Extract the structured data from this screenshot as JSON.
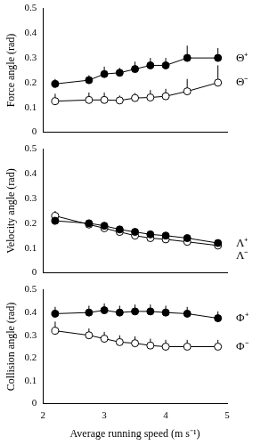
{
  "chart_data": [
    {
      "type": "line",
      "y_label": "Force angle (rad)",
      "x": [
        2.2,
        2.75,
        3.0,
        3.25,
        3.5,
        3.75,
        4.0,
        4.35,
        4.85
      ],
      "series": [
        {
          "name": "Θ⁺",
          "color": "#000000",
          "marker": "filled_circle",
          "line_style": "solid",
          "values": [
            0.195,
            0.21,
            0.235,
            0.24,
            0.255,
            0.27,
            0.27,
            0.3,
            0.3
          ],
          "errors": [
            0.02,
            0.02,
            0.03,
            0.02,
            0.03,
            0.03,
            0.03,
            0.05,
            0.04
          ]
        },
        {
          "name": "Θ⁻",
          "color": "#000000",
          "marker": "open_circle",
          "line_style": "solid",
          "values": [
            0.125,
            0.13,
            0.13,
            0.128,
            0.138,
            0.14,
            0.145,
            0.165,
            0.2
          ],
          "errors": [
            0.03,
            0.03,
            0.03,
            0.02,
            0.02,
            0.03,
            0.03,
            0.05,
            0.07
          ]
        }
      ],
      "xlim": [
        2,
        5
      ],
      "xticks": [
        2,
        3,
        4,
        5
      ],
      "ylim": [
        0,
        0.5
      ],
      "yticks": [
        0,
        0.1,
        0.2,
        0.3,
        0.4,
        0.5
      ],
      "grid": false,
      "tick_labels": "y"
    },
    {
      "type": "line",
      "y_label": "Velocity angle (rad)",
      "x": [
        2.2,
        2.75,
        3.0,
        3.25,
        3.5,
        3.75,
        4.0,
        4.35,
        4.85
      ],
      "series": [
        {
          "name": "Λ⁺",
          "color": "#000000",
          "marker": "filled_circle",
          "line_style": "solid",
          "values": [
            0.21,
            0.2,
            0.19,
            0.175,
            0.165,
            0.155,
            0.15,
            0.14,
            0.12
          ],
          "errors": [
            0.01,
            0.01,
            0.01,
            0.01,
            0.01,
            0.01,
            0.01,
            0.01,
            0.01
          ]
        },
        {
          "name": "Λ⁻",
          "color": "#000000",
          "marker": "open_circle",
          "line_style": "solid",
          "values": [
            0.23,
            0.195,
            0.18,
            0.165,
            0.15,
            0.14,
            0.135,
            0.125,
            0.11
          ],
          "errors": [
            0.02,
            0.01,
            0.01,
            0.01,
            0.01,
            0.01,
            0.01,
            0.01,
            0.01
          ]
        }
      ],
      "xlim": [
        2,
        5
      ],
      "xticks": [
        2,
        3,
        4,
        5
      ],
      "ylim": [
        0,
        0.5
      ],
      "yticks": [
        0,
        0.1,
        0.2,
        0.3,
        0.4,
        0.5
      ],
      "grid": false,
      "tick_labels": "y"
    },
    {
      "type": "line",
      "y_label": "Collision angle (rad)",
      "x_label": "Average running speed (m s⁻¹)",
      "x": [
        2.2,
        2.75,
        3.0,
        3.25,
        3.5,
        3.75,
        4.0,
        4.35,
        4.85
      ],
      "series": [
        {
          "name": "Φ⁺",
          "color": "#000000",
          "marker": "filled_circle",
          "line_style": "solid",
          "values": [
            0.395,
            0.4,
            0.41,
            0.4,
            0.405,
            0.405,
            0.4,
            0.395,
            0.375
          ],
          "errors": [
            0.03,
            0.03,
            0.03,
            0.03,
            0.03,
            0.03,
            0.03,
            0.03,
            0.03
          ]
        },
        {
          "name": "Φ⁻",
          "color": "#000000",
          "marker": "open_circle",
          "line_style": "solid",
          "values": [
            0.32,
            0.3,
            0.285,
            0.27,
            0.265,
            0.255,
            0.25,
            0.25,
            0.25
          ],
          "errors": [
            0.04,
            0.03,
            0.03,
            0.03,
            0.03,
            0.03,
            0.03,
            0.03,
            0.03
          ]
        }
      ],
      "xlim": [
        2,
        5
      ],
      "xticks": [
        2,
        3,
        4,
        5
      ],
      "ylim": [
        0,
        0.5
      ],
      "yticks": [
        0,
        0.1,
        0.2,
        0.3,
        0.4,
        0.5
      ],
      "grid": false
    }
  ]
}
